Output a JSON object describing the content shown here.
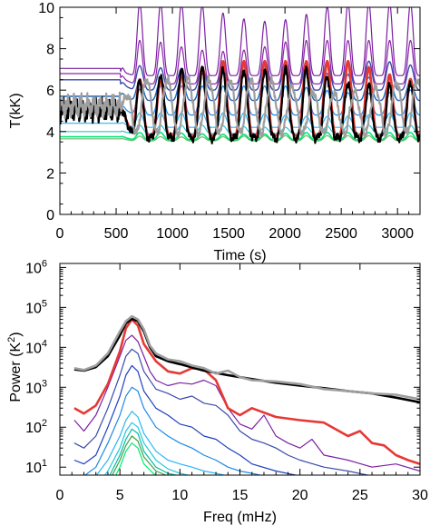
{
  "chart_data": [
    {
      "type": "line",
      "xlabel": "Time (s)",
      "ylabel": "T(kK)",
      "xlim": [
        0,
        3200
      ],
      "ylim": [
        0,
        10
      ],
      "xticks": [
        0,
        500,
        1000,
        1500,
        2000,
        2500,
        3000
      ],
      "yticks": [
        0,
        2,
        4,
        6,
        8,
        10
      ],
      "xtick_labels": [
        "0",
        "500",
        "1000",
        "1500",
        "2000",
        "2500",
        "3000"
      ],
      "ytick_labels": [
        "0",
        "2",
        "4",
        "6",
        "8",
        "10"
      ],
      "oscillation": {
        "start": 540,
        "period": 185,
        "phase_time": 710
      },
      "series": [
        {
          "color": "#7b1fa2",
          "width": 1.2,
          "base": 7.05,
          "osc_base": 6.9,
          "peak": 10.2,
          "trough": 6.7,
          "sharp": 3
        },
        {
          "color": "#8e24aa",
          "width": 1.2,
          "base": 6.8,
          "osc_base": 6.6,
          "peak": 8.4,
          "trough": 6.3,
          "sharp": 3
        },
        {
          "color": "#3949ab",
          "width": 1.4,
          "base": 6.5,
          "osc_base": 6.3,
          "peak": 7.4,
          "trough": 6.0,
          "sharp": 2
        },
        {
          "color": "#1565c0",
          "width": 1.4,
          "base": 5.7,
          "osc_base": 5.8,
          "peak": 6.8,
          "trough": 5.5,
          "sharp": 2
        },
        {
          "color": "#1e88e5",
          "width": 1.2,
          "base": 5.3,
          "osc_base": 5.2,
          "peak": 6.2,
          "trough": 4.8,
          "sharp": 2
        },
        {
          "color": "#29b6f6",
          "width": 1.2,
          "base": 4.4,
          "osc_base": 4.4,
          "peak": 4.9,
          "trough": 4.2,
          "sharp": 2
        },
        {
          "color": "#26c6da",
          "width": 1.2,
          "base": 4.0,
          "osc_base": 4.0,
          "peak": 4.3,
          "trough": 3.9,
          "sharp": 2
        },
        {
          "color": "#00e676",
          "width": 1.6,
          "base": 3.75,
          "osc_base": 3.75,
          "peak": 3.95,
          "trough": 3.6,
          "sharp": 2
        },
        {
          "color": "#66bb6a",
          "width": 1.2,
          "base": 3.65,
          "osc_base": 3.65,
          "peak": 3.8,
          "trough": 3.55,
          "sharp": 2
        },
        {
          "color": "#e53935",
          "width": 2.8,
          "base": 5.0,
          "osc_base": 5.0,
          "peak": 7.4,
          "trough": 3.8,
          "sharp": 2
        },
        {
          "color": "#000000",
          "width": 2.2,
          "base": 5.0,
          "osc_base": 5.0,
          "peak": 7.0,
          "trough": 3.7,
          "sharp": 2,
          "noisy": true
        },
        {
          "color": "#9e9e9e",
          "width": 2.2,
          "base": 5.2,
          "osc_base": 5.2,
          "peak": 6.5,
          "trough": 3.9,
          "sharp": 1,
          "noisy": true,
          "phase_shift": 60
        }
      ]
    },
    {
      "type": "line",
      "xlabel": "Freq (mHz)",
      "ylabel_main": "Power (K",
      "ylabel_sup": "2",
      "ylabel_end": ")",
      "xlim": [
        0,
        30
      ],
      "ylim_log10": [
        0.8,
        6.1
      ],
      "yscale": "log",
      "xticks": [
        0,
        5,
        10,
        15,
        20,
        25,
        30
      ],
      "xtick_labels": [
        "0",
        "5",
        "10",
        "15",
        "20",
        "25",
        "30"
      ],
      "yticks_log10": [
        1,
        2,
        3,
        4,
        5,
        6
      ],
      "ytick_base": "10",
      "ytick_exponents": [
        "1",
        "2",
        "3",
        "4",
        "5",
        "6"
      ],
      "series": [
        {
          "color": "#000000",
          "width": 2.6,
          "x": [
            1.2,
            2,
            3,
            4,
            5,
            5.5,
            6,
            6.5,
            7,
            7.5,
            8,
            9,
            10,
            12,
            14,
            16,
            18,
            20,
            22,
            24,
            26,
            28,
            30
          ],
          "y": [
            2800,
            2600,
            3200,
            6000,
            20000,
            40000,
            52000,
            45000,
            25000,
            10000,
            6000,
            4500,
            3800,
            2600,
            2000,
            1600,
            1300,
            1100,
            950,
            800,
            700,
            550,
            420
          ]
        },
        {
          "color": "#9e9e9e",
          "width": 2.6,
          "x": [
            1.2,
            2,
            3,
            4,
            5,
            5.5,
            6,
            6.5,
            7,
            7.5,
            8,
            9,
            10,
            11,
            12,
            13,
            14,
            15,
            16,
            18,
            20,
            22,
            24,
            26,
            28,
            30
          ],
          "y": [
            3000,
            2700,
            3500,
            7000,
            25000,
            45000,
            60000,
            50000,
            28000,
            11000,
            7000,
            5000,
            4500,
            3500,
            3000,
            2200,
            2600,
            1800,
            1500,
            1400,
            1200,
            900,
            800,
            700,
            650,
            500
          ]
        },
        {
          "color": "#e53935",
          "width": 2.6,
          "x": [
            1.2,
            2,
            3,
            4,
            5,
            5.5,
            6,
            6.5,
            7,
            8,
            9,
            10,
            11,
            12,
            13,
            14,
            15,
            16,
            18,
            20,
            22,
            24,
            25,
            26,
            27,
            28,
            29,
            30
          ],
          "y": [
            300,
            220,
            350,
            1200,
            8000,
            30000,
            50000,
            35000,
            12000,
            4500,
            2500,
            2200,
            3000,
            2800,
            1500,
            300,
            200,
            300,
            180,
            150,
            130,
            60,
            80,
            40,
            35,
            20,
            15,
            12
          ]
        },
        {
          "color": "#7b1fa2",
          "width": 1.2,
          "x": [
            1.2,
            2,
            3,
            4,
            5,
            5.5,
            6,
            6.5,
            7,
            7.5,
            8,
            9,
            10,
            11,
            12,
            13,
            14,
            15,
            16,
            17,
            18,
            19,
            20,
            21,
            22,
            24,
            26,
            28,
            30
          ],
          "y": [
            150,
            80,
            200,
            1000,
            6000,
            15000,
            20000,
            14000,
            6000,
            2500,
            1500,
            1100,
            1300,
            1200,
            1500,
            1100,
            300,
            120,
            90,
            200,
            60,
            40,
            30,
            50,
            20,
            15,
            10,
            12,
            8
          ]
        },
        {
          "color": "#3949ab",
          "width": 1.2,
          "x": [
            1.2,
            2,
            3,
            4,
            5,
            5.5,
            6,
            6.5,
            7,
            8,
            9,
            10,
            11,
            12,
            13,
            14,
            15,
            16,
            17,
            18,
            19,
            20,
            22,
            24,
            26
          ],
          "y": [
            40,
            30,
            60,
            300,
            2000,
            6000,
            9000,
            7000,
            2500,
            900,
            700,
            500,
            600,
            400,
            350,
            200,
            80,
            50,
            40,
            30,
            20,
            15,
            10,
            8,
            6
          ]
        },
        {
          "color": "#1e3fbf",
          "width": 1.2,
          "x": [
            1.2,
            2,
            3,
            4,
            5,
            5.5,
            6,
            6.5,
            7,
            8,
            9,
            10,
            11,
            12,
            13,
            14,
            15,
            16,
            18,
            20
          ],
          "y": [
            15,
            12,
            20,
            100,
            600,
            2000,
            3500,
            2500,
            800,
            300,
            200,
            120,
            100,
            60,
            50,
            30,
            20,
            12,
            8,
            6
          ]
        },
        {
          "color": "#1e88e5",
          "width": 1.2,
          "x": [
            2,
            3,
            4,
            5,
            5.5,
            6,
            6.5,
            7,
            8,
            9,
            10,
            11,
            12,
            13,
            14,
            15,
            16,
            17
          ],
          "y": [
            6,
            10,
            40,
            200,
            600,
            1000,
            800,
            300,
            100,
            60,
            40,
            30,
            20,
            15,
            10,
            8,
            7,
            6
          ]
        },
        {
          "color": "#29b6f6",
          "width": 1.2,
          "x": [
            3,
            4,
            5,
            5.5,
            6,
            6.5,
            7,
            8,
            9,
            10,
            11,
            12,
            13,
            14
          ],
          "y": [
            6,
            15,
            60,
            150,
            250,
            180,
            70,
            25,
            15,
            12,
            10,
            8,
            7,
            6
          ]
        },
        {
          "color": "#26c6da",
          "width": 1.2,
          "x": [
            3.5,
            4,
            5,
            5.5,
            6,
            6.5,
            7,
            8,
            9,
            10,
            11,
            12
          ],
          "y": [
            5,
            8,
            30,
            80,
            130,
            100,
            40,
            15,
            9,
            7,
            6,
            5
          ]
        },
        {
          "color": "#00bfa5",
          "width": 1.2,
          "x": [
            4,
            5,
            5.5,
            6,
            6.5,
            7,
            8,
            9,
            10,
            11
          ],
          "y": [
            5,
            20,
            50,
            90,
            70,
            25,
            10,
            7,
            6,
            5
          ]
        },
        {
          "color": "#43a047",
          "width": 1.2,
          "x": [
            4.2,
            5,
            5.5,
            6,
            6.5,
            7,
            8,
            9,
            10
          ],
          "y": [
            5,
            15,
            35,
            60,
            45,
            18,
            8,
            6,
            5
          ]
        },
        {
          "color": "#00e676",
          "width": 1.2,
          "x": [
            4.5,
            5,
            5.5,
            6,
            6.5,
            7,
            8,
            9
          ],
          "y": [
            5,
            10,
            25,
            40,
            30,
            12,
            6,
            5
          ]
        }
      ]
    }
  ]
}
